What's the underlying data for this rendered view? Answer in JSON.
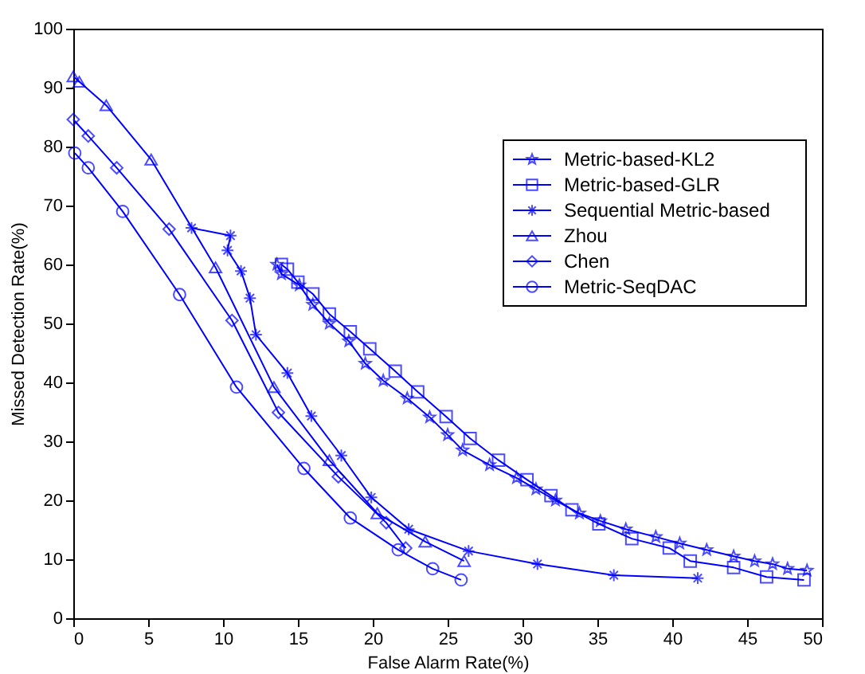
{
  "chart_data": {
    "type": "line",
    "xlabel": "False Alarm Rate(%)",
    "ylabel": "Missed Detection Rate(%)",
    "xlim": [
      0,
      50
    ],
    "ylim": [
      0,
      100
    ],
    "xticks": [
      0,
      5,
      10,
      15,
      20,
      25,
      30,
      35,
      40,
      45,
      50
    ],
    "yticks": [
      0,
      10,
      20,
      30,
      40,
      50,
      60,
      70,
      80,
      90,
      100
    ],
    "grid": false,
    "legend": "top right",
    "line_style": "solid",
    "series": [
      {
        "name": "Metric-based-KL2",
        "color": "#0000ff",
        "marker": "star",
        "x": [
          13.6,
          13.9,
          15.1,
          16,
          17.1,
          18.4,
          19.5,
          20.7,
          22.3,
          23.8,
          25,
          26,
          27.8,
          29.6,
          30.9,
          32.2,
          33.8,
          35.2,
          36.9,
          38.9,
          40.5,
          42.3,
          44.1,
          45.5,
          46.7,
          47.7,
          49
        ],
        "values": [
          60,
          58.4,
          56.5,
          53.2,
          50,
          47,
          43.2,
          40.3,
          37.3,
          34.1,
          31.1,
          28.5,
          26,
          23.8,
          21.9,
          20,
          17.8,
          16.5,
          15.1,
          13.8,
          12.7,
          11.6,
          10.5,
          9.7,
          9.2,
          8.4,
          8.1
        ]
      },
      {
        "name": "Metric-based-GLR",
        "color": "#0000ff",
        "marker": "square",
        "x": [
          13.9,
          14.3,
          15,
          16,
          17.1,
          18.5,
          19.8,
          21.5,
          23,
          24.9,
          26.5,
          28.4,
          30.3,
          31.9,
          33.3,
          35.1,
          37.3,
          39.8,
          41.2,
          44.1,
          46.3,
          48.8
        ],
        "values": [
          60,
          59.2,
          57,
          55,
          51.6,
          48.6,
          45.7,
          41.9,
          38.4,
          34.2,
          30.5,
          26.8,
          23.5,
          20.8,
          18.4,
          16,
          13.5,
          11.9,
          9.7,
          8.6,
          7,
          6.5
        ]
      },
      {
        "name": "Sequential Metric-based",
        "color": "#0000ff",
        "marker": "cross",
        "x": [
          7.9,
          10.5,
          10.3,
          11.2,
          11.8,
          12.2,
          14.3,
          15.9,
          17.9,
          19.9,
          22.4,
          26.4,
          31,
          36.1,
          41.7
        ],
        "values": [
          66.2,
          64.9,
          62.4,
          58.9,
          54.3,
          48.1,
          41.6,
          34.3,
          27.6,
          20.5,
          15.1,
          11.4,
          9.2,
          7.3,
          6.8
        ]
      },
      {
        "name": "Zhou",
        "color": "#0000ff",
        "marker": "triangle",
        "x": [
          0,
          0.4,
          2.2,
          5.2,
          9.5,
          13.4,
          17.1,
          20.3,
          23.5,
          26.1
        ],
        "values": [
          91.9,
          91,
          87,
          77.8,
          59.5,
          39.2,
          26.8,
          17.8,
          13,
          9.7
        ]
      },
      {
        "name": "Chen",
        "color": "#0000ff",
        "marker": "diamond",
        "x": [
          0,
          1,
          2.9,
          6.4,
          10.6,
          13.7,
          17.7,
          20.9,
          22.2
        ],
        "values": [
          84.6,
          81.8,
          76.4,
          66,
          50.5,
          34.9,
          24,
          16.2,
          11.9
        ]
      },
      {
        "name": "Metric-SeqDAC",
        "color": "#0000ff",
        "marker": "circle",
        "x": [
          0.1,
          1,
          3.3,
          7.1,
          10.9,
          15.4,
          18.5,
          21.7,
          24,
          25.9
        ],
        "values": [
          78.9,
          76.4,
          69,
          54.9,
          39.2,
          25.4,
          17,
          11.6,
          8.4,
          6.5
        ]
      }
    ]
  }
}
